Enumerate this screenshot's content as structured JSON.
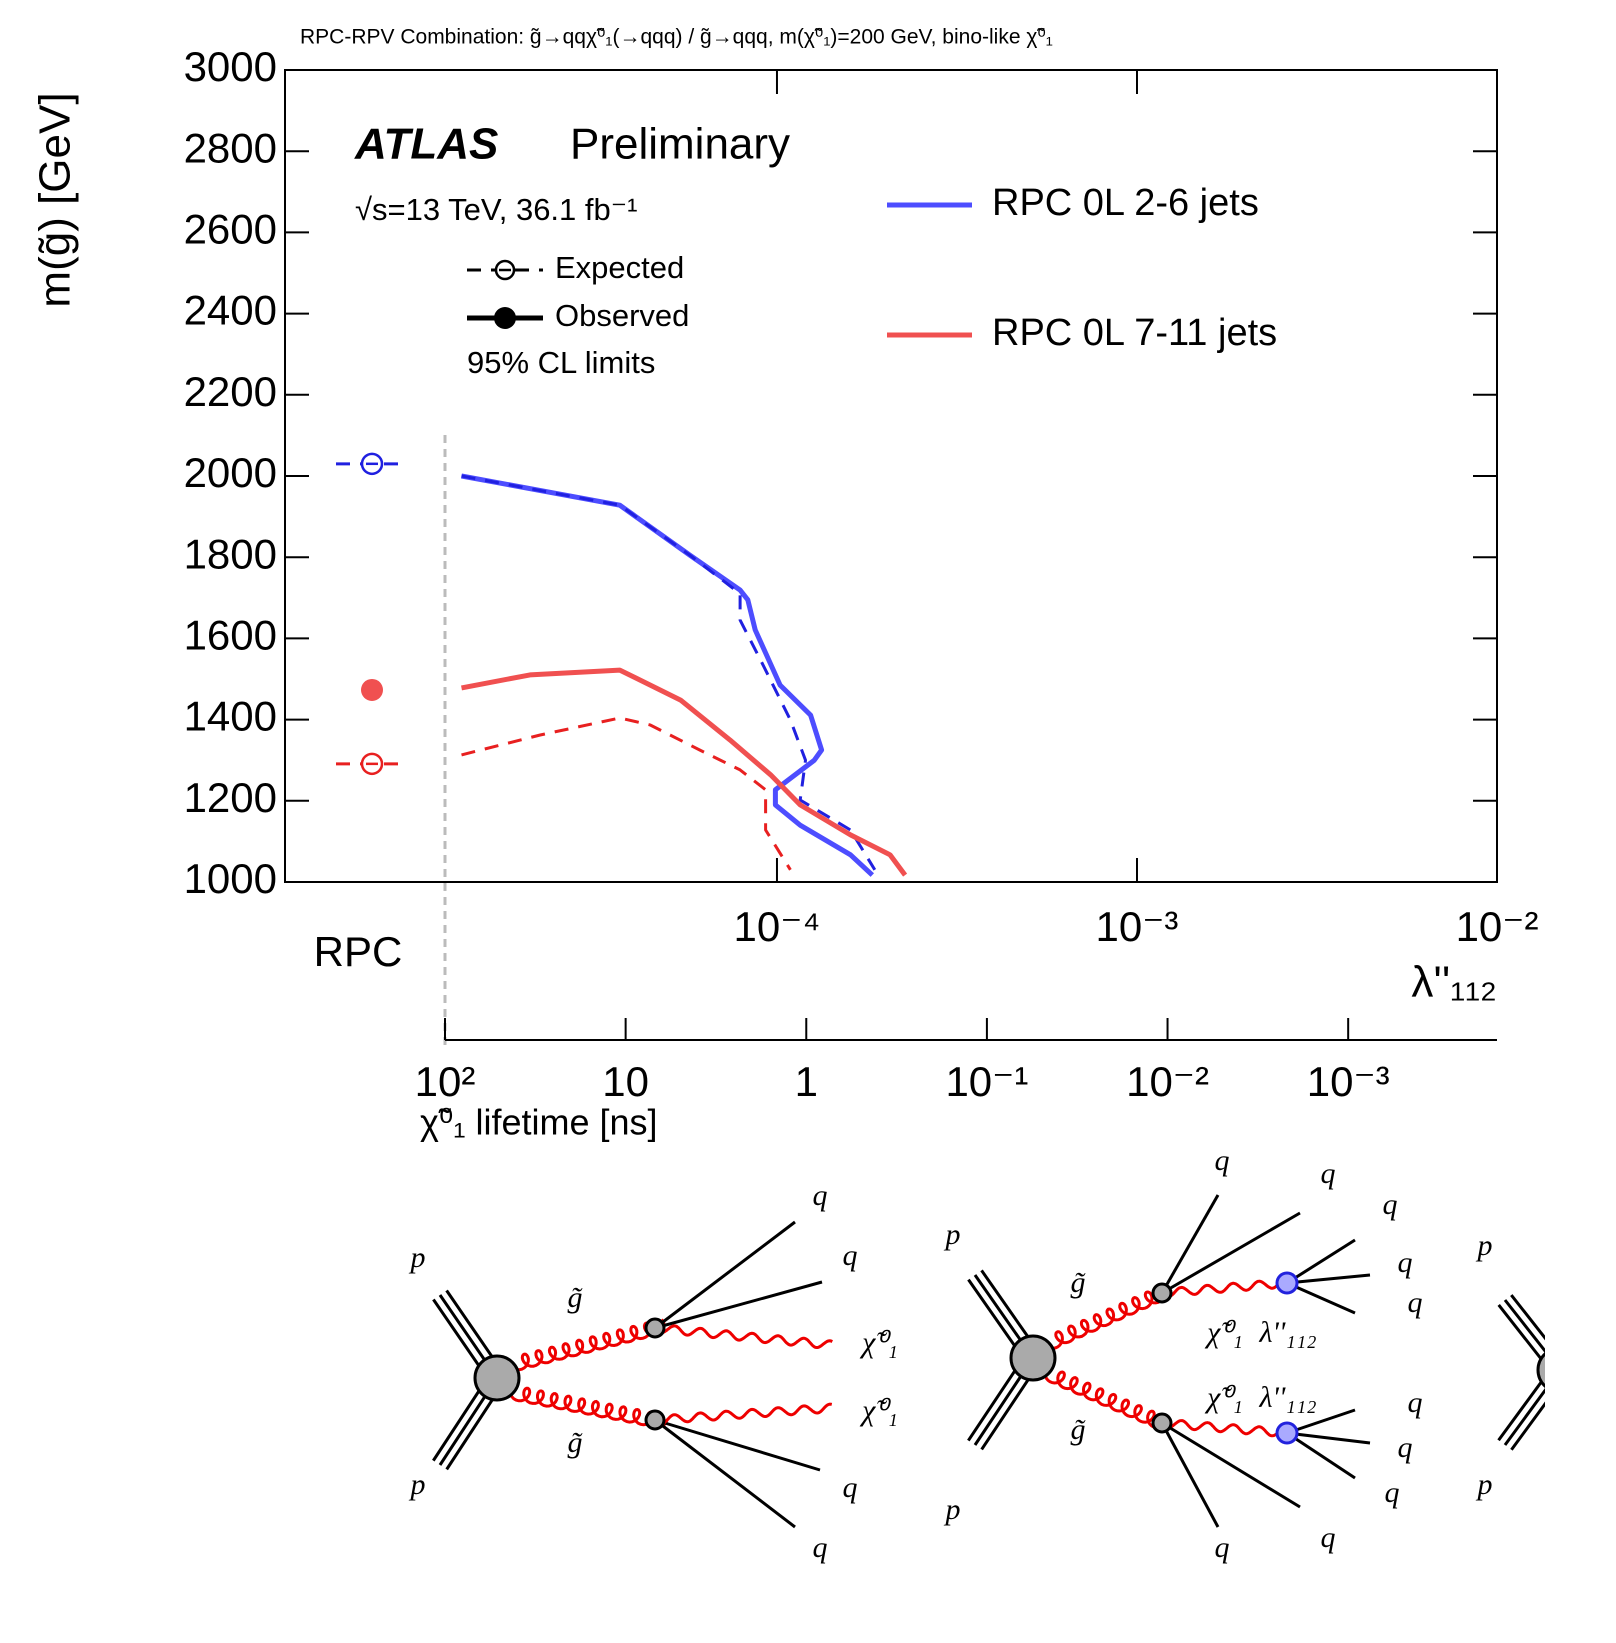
{
  "chart_data": {
    "type": "line",
    "title": "RPC-RPV Combination: g̃→qqχ̃⁰₁(→qqq) / g̃→qqq, m(χ̃⁰₁)=200 GeV, bino-like χ̃⁰₁",
    "x_label": "λ''₁₁₂",
    "y_label": "m(g̃) [GeV]",
    "log_x": true,
    "xlim": [
      4.3e-06,
      0.01
    ],
    "xticks": [
      {
        "value": 0.0001,
        "label": "10⁻⁴"
      },
      {
        "value": 0.001,
        "label": "10⁻³"
      },
      {
        "value": 0.01,
        "label": "10⁻²"
      }
    ],
    "ylim": [
      1000,
      3000
    ],
    "yticks": [
      1000,
      1200,
      1400,
      1600,
      1800,
      2000,
      2200,
      2400,
      2600,
      2800,
      3000
    ],
    "rpc_label": "RPC",
    "lifetime_axis": {
      "label": "χ̃⁰₁ lifetime [ns]",
      "lim": [
        100,
        0.00015
      ],
      "ticks": [
        {
          "value": 100,
          "label": "10²"
        },
        10,
        1,
        {
          "value": 0.1,
          "label": "10⁻¹"
        },
        {
          "value": 0.01,
          "label": "10⁻²"
        },
        {
          "value": 0.001,
          "label": "10⁻³"
        }
      ]
    },
    "annotations": {
      "experiment": "ATLAS",
      "status": "Preliminary",
      "energy": "√s=13 TeV, 36.1 fb⁻¹",
      "expected": "Expected",
      "observed": "Observed",
      "cl": "95% CL limits"
    },
    "legend_position": "upper right",
    "series": [
      {
        "name": "RPC 0L 2-6 jets",
        "color": "#4d4dff",
        "style": "solid",
        "rpc": 2030,
        "x": [
          1.33e-05,
          3.66e-05,
          5.73e-05,
          7.9e-05,
          8.3e-05,
          8.7e-05,
          0.000102,
          0.000124,
          0.000133,
          0.000127,
          9.9e-05,
          9.9e-05,
          0.000116,
          0.00016,
          0.000184
        ],
        "values": [
          2000,
          1928,
          1805,
          1719,
          1695,
          1621,
          1485,
          1411,
          1325,
          1300,
          1227,
          1190,
          1140,
          1067,
          1017
        ]
      },
      {
        "name": "RPC 0L 2-6 jets",
        "color": "#2020e0",
        "style": "dashed",
        "rpc": 2030,
        "x": [
          1.33e-05,
          3.66e-05,
          5.73e-05,
          7.9e-05,
          7.9e-05,
          9e-05,
          0.000109,
          0.00012,
          0.000116,
          0.00016,
          0.000187
        ],
        "values": [
          2000,
          1928,
          1805,
          1710,
          1645,
          1547,
          1399,
          1300,
          1202,
          1128,
          1030
        ]
      },
      {
        "name": "RPC 0L 7-11 jets",
        "color": "#f05050",
        "style": "solid",
        "rpc": 1473,
        "x": [
          1.33e-05,
          2.06e-05,
          3.66e-05,
          5.4e-05,
          7.4e-05,
          9.6e-05,
          0.000116,
          0.00016,
          0.000206,
          0.000227
        ],
        "values": [
          1478,
          1510,
          1522,
          1448,
          1350,
          1264,
          1190,
          1116,
          1067,
          1017
        ]
      },
      {
        "name": "RPC 0L 7-11 jets",
        "color": "#e82020",
        "style": "dashed",
        "rpc": 1291,
        "x": [
          1.33e-05,
          2.2e-05,
          3.66e-05,
          4.44e-05,
          6.1e-05,
          7.9e-05,
          9.3e-05,
          9.3e-05,
          0.000109
        ],
        "values": [
          1313,
          1362,
          1404,
          1387,
          1325,
          1276,
          1227,
          1128,
          1030
        ]
      }
    ]
  },
  "diagrams": [
    {
      "labels": [
        "p",
        "p",
        "g̃",
        "g̃",
        "χ̃⁰₁",
        "χ̃⁰₁",
        "q",
        "q",
        "q",
        "q"
      ]
    },
    {
      "labels": [
        "p",
        "p",
        "g̃",
        "g̃",
        "χ̃⁰₁",
        "λ''₁₁₂",
        "χ̃⁰₁",
        "λ''₁₁₂",
        "q",
        "q",
        "q",
        "q",
        "q",
        "q",
        "q",
        "q",
        "q",
        "q"
      ]
    },
    {
      "labels": [
        "p",
        "p"
      ]
    }
  ]
}
